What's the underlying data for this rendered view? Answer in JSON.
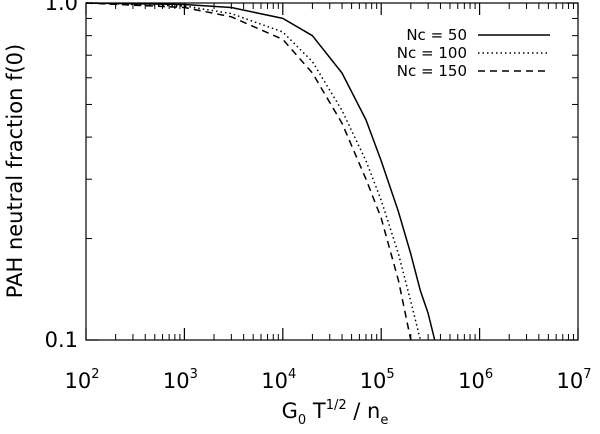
{
  "chart_data": {
    "type": "line",
    "title": "",
    "xlabel": {
      "base": "G",
      "sub1": "0",
      "mid": " T",
      "sup": "1/2",
      "tail": " / n",
      "sub2": "e"
    },
    "ylabel": "PAH neutral fraction f(0)",
    "xscale": "log",
    "yscale": "log",
    "xlim": [
      100,
      10000000
    ],
    "ylim": [
      0.1,
      1.0
    ],
    "x_ticks": [
      {
        "value": 100,
        "base": "10",
        "exp": "2"
      },
      {
        "value": 1000,
        "base": "10",
        "exp": "3"
      },
      {
        "value": 10000,
        "base": "10",
        "exp": "4"
      },
      {
        "value": 100000,
        "base": "10",
        "exp": "5"
      },
      {
        "value": 1000000,
        "base": "10",
        "exp": "6"
      },
      {
        "value": 10000000,
        "base": "10",
        "exp": "7"
      }
    ],
    "y_ticks": [
      {
        "value": 0.1,
        "label": "0.1"
      },
      {
        "value": 1.0,
        "label": "1.0"
      }
    ],
    "grid": false,
    "legend_position": "top-right",
    "series": [
      {
        "name": "Nc = 50",
        "dash": "solid",
        "x": [
          100,
          1000,
          3000,
          10000,
          20000,
          40000,
          70000,
          100000,
          150000,
          200000,
          250000,
          300000,
          350000
        ],
        "y": [
          1.0,
          0.99,
          0.97,
          0.9,
          0.8,
          0.62,
          0.45,
          0.34,
          0.24,
          0.18,
          0.14,
          0.12,
          0.1
        ]
      },
      {
        "name": "Nc = 100",
        "dash": "dotted",
        "x": [
          100,
          1000,
          3000,
          10000,
          20000,
          40000,
          70000,
          100000,
          150000,
          200000,
          250000
        ],
        "y": [
          1.0,
          0.98,
          0.93,
          0.82,
          0.67,
          0.48,
          0.34,
          0.26,
          0.18,
          0.13,
          0.1
        ]
      },
      {
        "name": "Nc = 150",
        "dash": "dashed",
        "x": [
          100,
          1000,
          3000,
          10000,
          20000,
          40000,
          70000,
          100000,
          150000,
          200000
        ],
        "y": [
          1.0,
          0.97,
          0.91,
          0.78,
          0.62,
          0.44,
          0.3,
          0.23,
          0.15,
          0.1
        ]
      }
    ]
  }
}
